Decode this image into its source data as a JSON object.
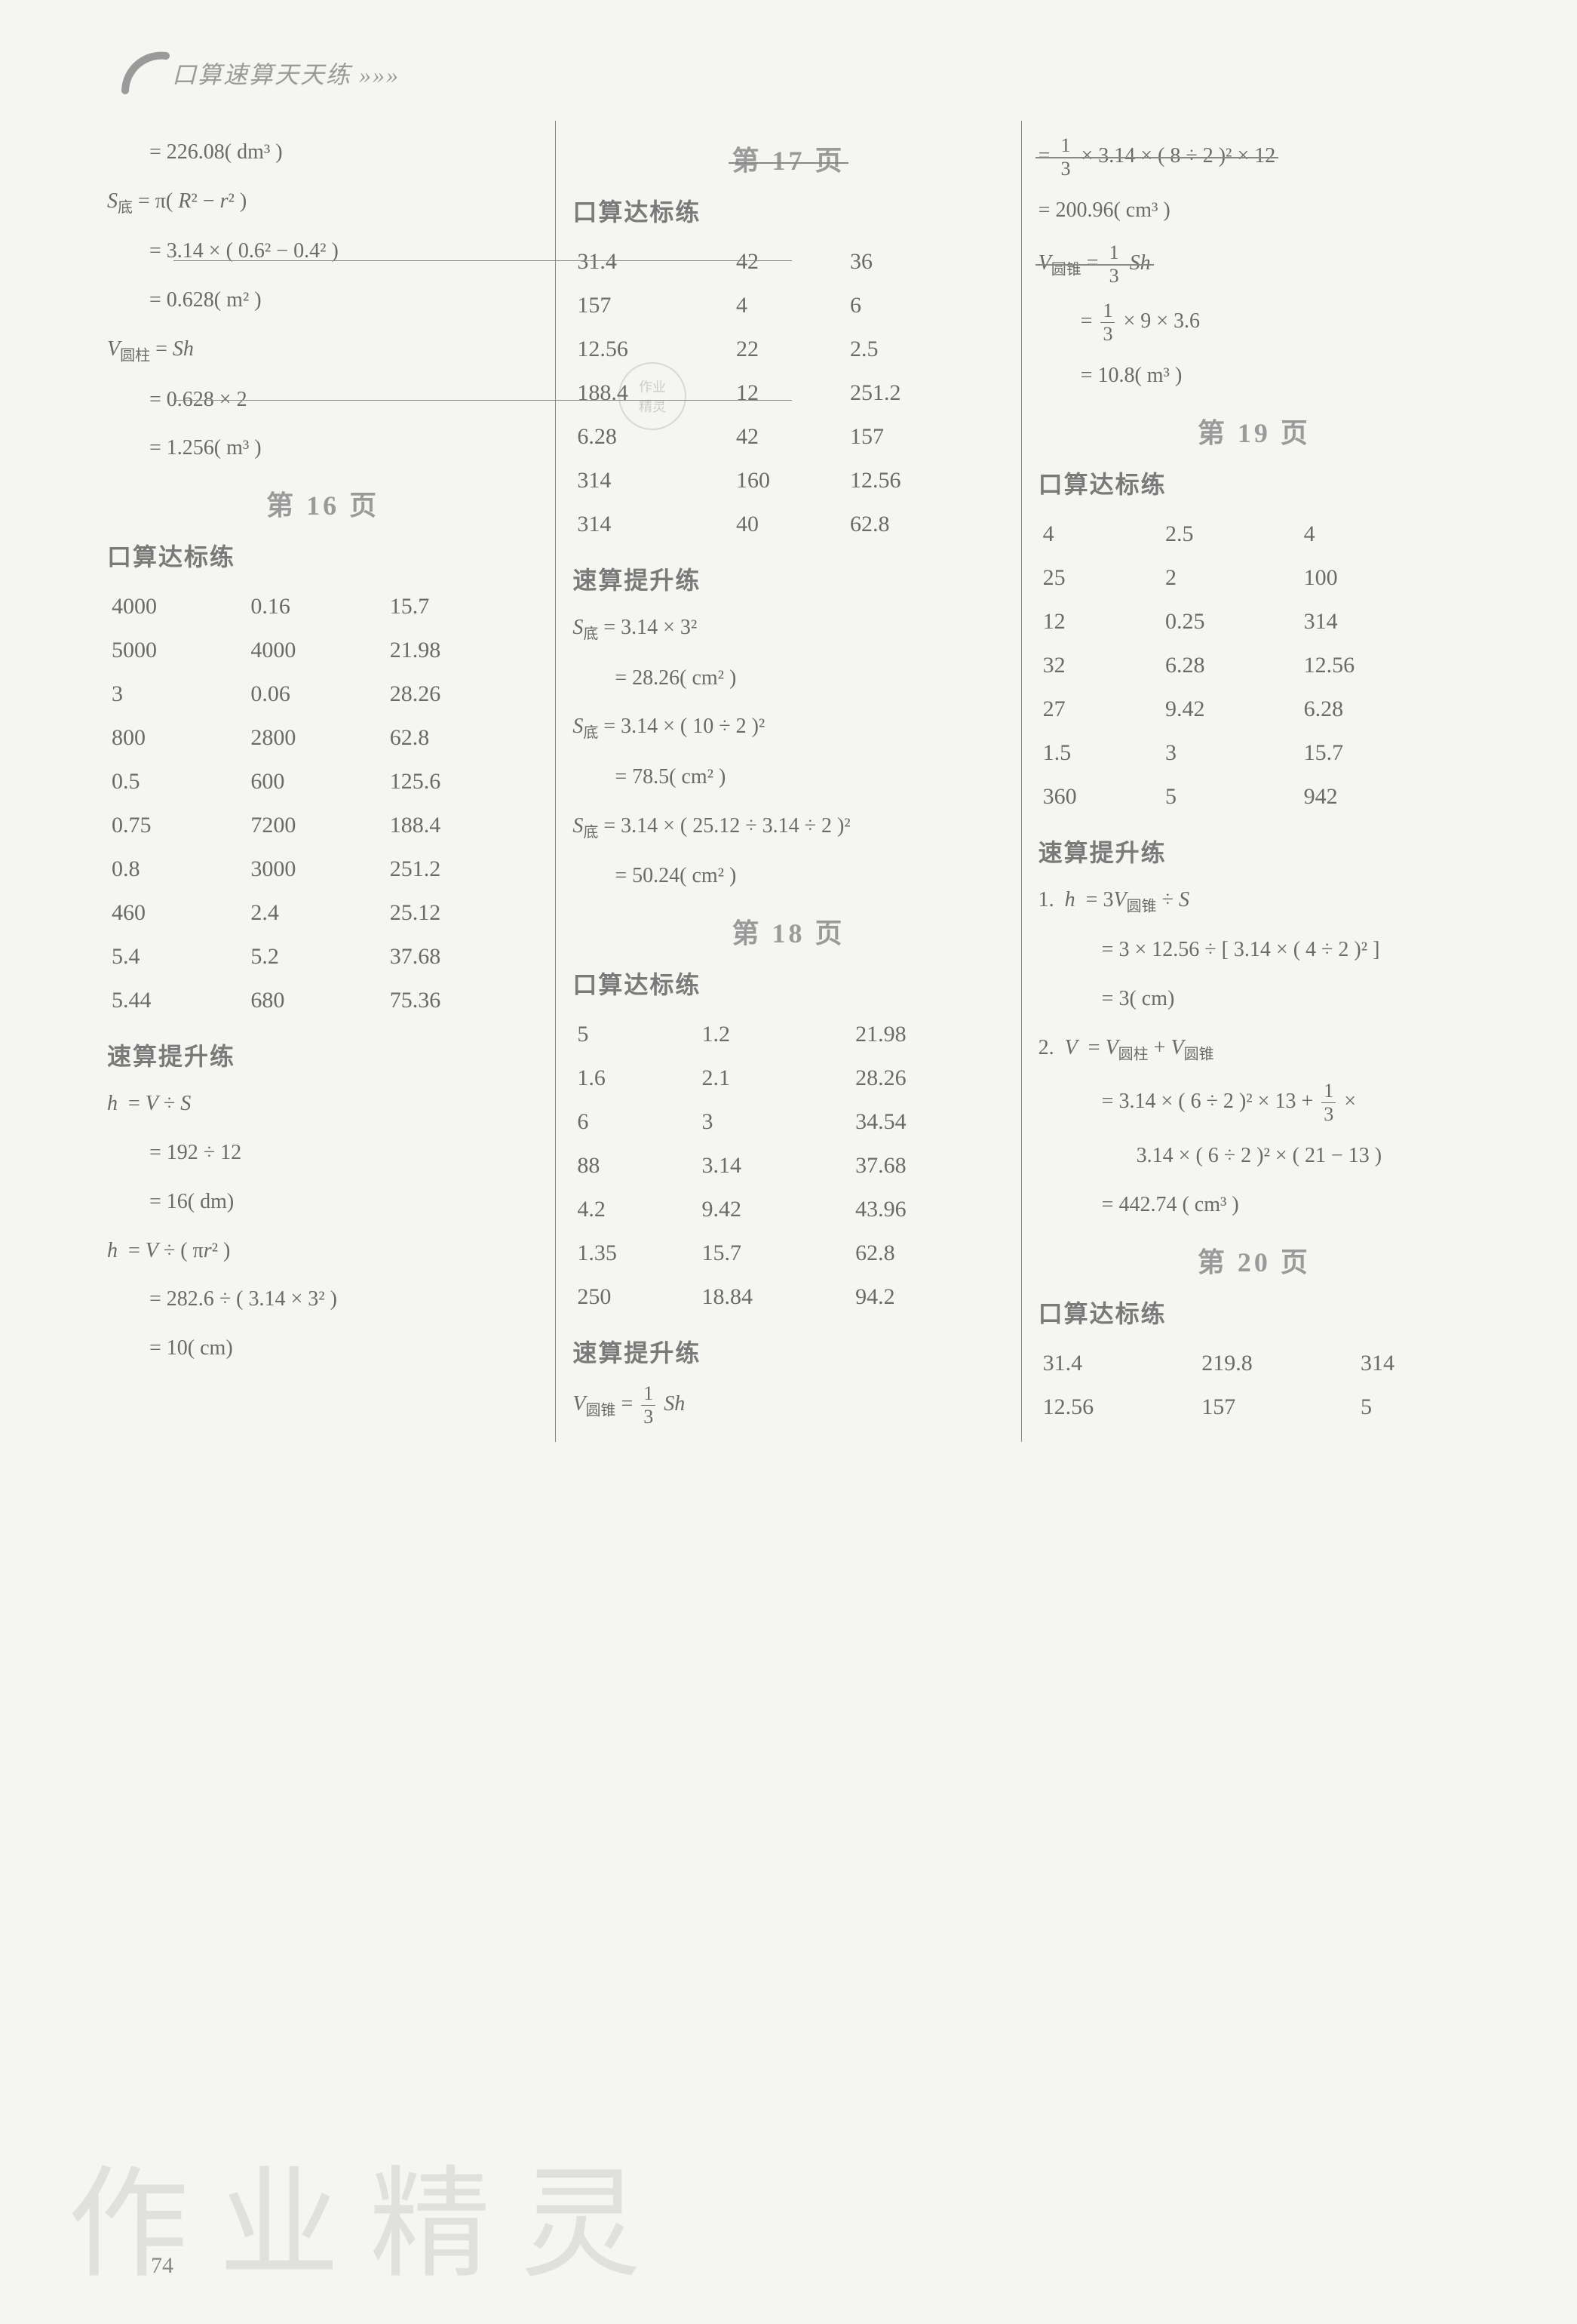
{
  "header": {
    "title": "口算速算天天练 »»»"
  },
  "page_number": "74",
  "watermark": "作业精灵",
  "stamp": {
    "line1": "作业",
    "line2": "精灵"
  },
  "col1": {
    "pre_eq": [
      "= 226.08( dm³ )",
      "S|底| = π( R² − r² )",
      "= 3.14 × ( 0.6² − 0.4² )",
      "= 0.628( m² )",
      "V|圆柱| = Sh",
      "= 0.628 × 2",
      "= 1.256( m³ )"
    ],
    "page_div": "第 16 页",
    "sec1": "口算达标练",
    "t1": [
      [
        "4000",
        "0.16",
        "15.7"
      ],
      [
        "5000",
        "4000",
        "21.98"
      ],
      [
        "3",
        "0.06",
        "28.26"
      ],
      [
        "800",
        "2800",
        "62.8"
      ],
      [
        "0.5",
        "600",
        "125.6"
      ],
      [
        "0.75",
        "7200",
        "188.4"
      ],
      [
        "0.8",
        "3000",
        "251.2"
      ],
      [
        "460",
        "2.4",
        "25.12"
      ],
      [
        "5.4",
        "5.2",
        "37.68"
      ],
      [
        "5.44",
        "680",
        "75.36"
      ]
    ],
    "sec2": "速算提升练",
    "eq2": [
      "h  = V ÷ S",
      "= 192 ÷ 12",
      "= 16( dm)",
      "h  = V ÷ ( πr² )",
      "= 282.6 ÷ ( 3.14 × 3² )",
      "= 10( cm)"
    ]
  },
  "col2": {
    "page_div1": "第 17 页",
    "sec1": "口算达标练",
    "t1": [
      [
        "31.4",
        "42",
        "36"
      ],
      [
        "157",
        "4",
        "6"
      ],
      [
        "12.56",
        "22",
        "2.5"
      ],
      [
        "188.4",
        "12",
        "251.2"
      ],
      [
        "6.28",
        "42",
        "157"
      ],
      [
        "314",
        "160",
        "12.56"
      ],
      [
        "314",
        "40",
        "62.8"
      ]
    ],
    "sec2": "速算提升练",
    "eq1": [
      "S|底| = 3.14 × 3²",
      "= 28.26( cm² )",
      "S|底| = 3.14 × ( 10 ÷ 2 )²",
      "= 78.5( cm² )",
      "S|底| = 3.14 × ( 25.12 ÷ 3.14 ÷ 2 )²",
      "= 50.24( cm² )"
    ],
    "page_div2": "第 18 页",
    "sec3": "口算达标练",
    "t2": [
      [
        "5",
        "1.2",
        "21.98"
      ],
      [
        "1.6",
        "2.1",
        "28.26"
      ],
      [
        "6",
        "3",
        "34.54"
      ],
      [
        "88",
        "3.14",
        "37.68"
      ],
      [
        "4.2",
        "9.42",
        "43.96"
      ],
      [
        "1.35",
        "15.7",
        "62.8"
      ],
      [
        "250",
        "18.84",
        "94.2"
      ]
    ],
    "sec4": "速算提升练",
    "eq2_lead": "V|圆锥| = ",
    "eq2_tail": "Sh",
    "frac13": {
      "n": "1",
      "d": "3"
    }
  },
  "col3": {
    "eq0_pre": "= ",
    "eq0_mid": " × 3.14 × ( 8 ÷ 2 )² × 12",
    "eq0b": "= 200.96( cm³ )",
    "eq1_lead": "V|圆锥| = ",
    "eq1_tail": "Sh",
    "eq1b_pre": "= ",
    "eq1b_mid": " × 9 × 3.6",
    "eq1c": "= 10.8( m³ )",
    "frac13": {
      "n": "1",
      "d": "3"
    },
    "page_div1": "第 19 页",
    "sec1": "口算达标练",
    "t1": [
      [
        "4",
        "2.5",
        "4"
      ],
      [
        "25",
        "2",
        "100"
      ],
      [
        "12",
        "0.25",
        "314"
      ],
      [
        "32",
        "6.28",
        "12.56"
      ],
      [
        "27",
        "9.42",
        "6.28"
      ],
      [
        "1.5",
        "3",
        "15.7"
      ],
      [
        "360",
        "5",
        "942"
      ]
    ],
    "sec2": "速算提升练",
    "eq2": [
      "1.  h  = 3V|圆锥| ÷ S",
      "= 3 × 12.56 ÷ [ 3.14 × ( 4 ÷ 2 )² ]",
      "= 3( cm)",
      "2.  V  = V|圆柱| + V|圆锥|"
    ],
    "eq2b_pre": "= 3.14 × ( 6 ÷ 2 )² × 13 + ",
    "eq2b_post": " ×",
    "eq2c": "3.14 × ( 6 ÷ 2 )² × ( 21 − 13 )",
    "eq2d": "= 442.74 ( cm³ )",
    "page_div2": "第 20 页",
    "sec3": "口算达标练",
    "t2": [
      [
        "31.4",
        "219.8",
        "314"
      ],
      [
        "12.56",
        "157",
        "5"
      ]
    ]
  }
}
